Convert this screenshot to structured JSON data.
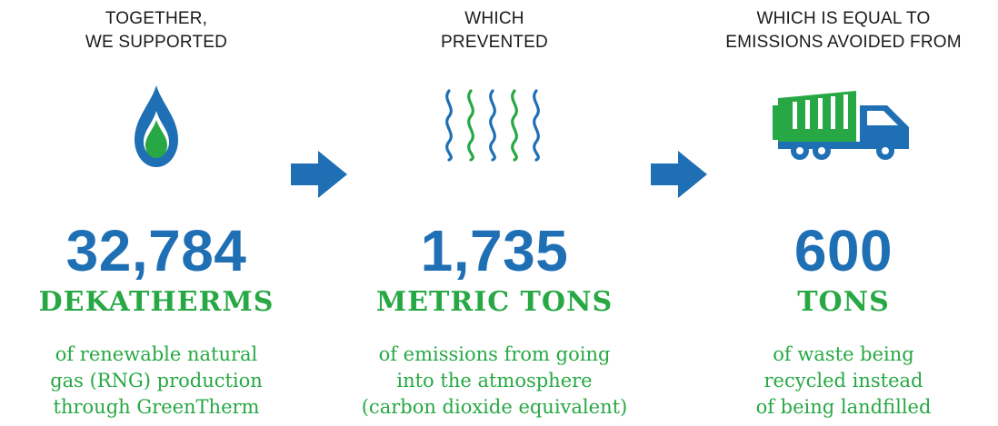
{
  "colors": {
    "blue": "#1f6fb5",
    "green": "#27a844",
    "text": "#1a1a1a"
  },
  "columns": [
    {
      "heading": [
        "TOGETHER,",
        "WE SUPPORTED"
      ],
      "icon": "flame-icon",
      "number": "32,784",
      "unit": "DEKATHERMS",
      "description": [
        "of renewable natural",
        "gas (RNG) production",
        "through GreenTherm"
      ]
    },
    {
      "heading": [
        "WHICH",
        "PREVENTED"
      ],
      "icon": "emissions-waves-icon",
      "number": "1,735",
      "unit": "METRIC TONS",
      "description": [
        "of emissions from going",
        "into the atmosphere",
        "(carbon dioxide equivalent)"
      ]
    },
    {
      "heading": [
        "WHICH IS EQUAL TO",
        "EMISSIONS AVOIDED FROM"
      ],
      "icon": "garbage-truck-icon",
      "number": "600",
      "unit": "TONS",
      "description": [
        "of waste being",
        "recycled instead",
        "of being landfilled"
      ]
    }
  ],
  "arrows": [
    "arrow-right-icon",
    "arrow-right-icon"
  ]
}
